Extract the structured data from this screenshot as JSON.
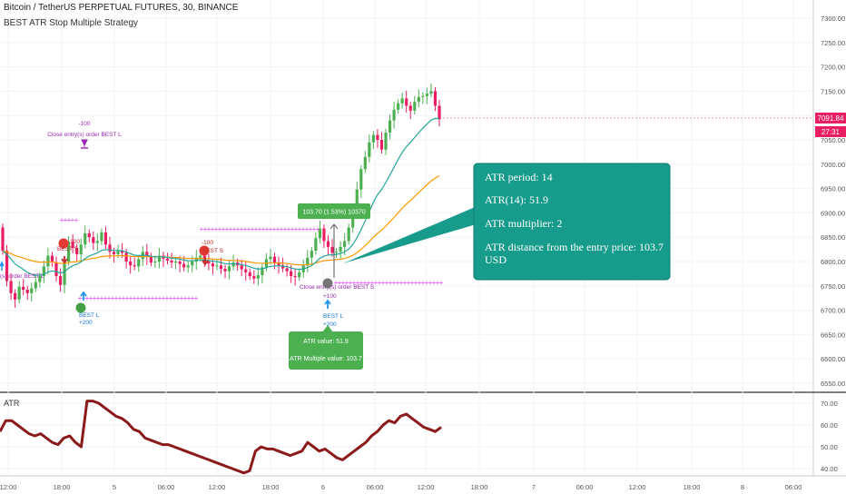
{
  "header": {
    "title": "Bitcoin / TetherUS PERPETUAL FUTURES, 30, BINANCE",
    "study": "BEST ATR Stop Multiple Strategy"
  },
  "price_axis": {
    "ticks": [
      "7300.00",
      "7250.00",
      "7200.00",
      "7150.00",
      "7100.00",
      "7050.00",
      "7000.00",
      "6950.00",
      "6900.00",
      "6850.00",
      "6800.00",
      "6750.00",
      "6700.00",
      "6650.00",
      "6600.00",
      "6550.00"
    ],
    "last_price": "7091.84",
    "countdown": "27:31"
  },
  "atr_pane": {
    "label": "ATR",
    "ticks": [
      "70.00",
      "60.00",
      "50.00",
      "40.00"
    ]
  },
  "time_axis": [
    "12:00",
    "18:00",
    "5",
    "06:00",
    "12:00",
    "18:00",
    "6",
    "06:00",
    "12:00",
    "18:00",
    "7",
    "06:00",
    "12:00",
    "18:00",
    "8",
    "06:00"
  ],
  "annotations": {
    "close_order_1_qty": "-100",
    "close_order_1_text": "Close entry(s) order BEST L",
    "best_s_1_qty": "-100",
    "best_s_1_label": "BEST S",
    "left_clipped_text": "(s) order BEST L",
    "best_l_1_label": "BEST L",
    "best_l_1_qty": "+200",
    "best_s_2_qty": "-100",
    "best_s_2_label": "BEST S",
    "close_order_2_text": "Close entry(s) order BEST S",
    "close_order_2_qty": "+100",
    "best_l_2_label": "BEST L",
    "best_l_2_qty": "+200",
    "measure_label": "103.70 (1.53%) 10370"
  },
  "info_box": {
    "line1": "ATR period: 14",
    "line2": "ATR(14): 51.9",
    "line3": "ATR multiplier: 2",
    "line4a": "ATR distance from the entry price: 103.7",
    "line4b": "USD"
  },
  "small_box": {
    "line1": "ATR value: 51.9",
    "line2": "ATR Multiple value: 103.7"
  },
  "colors": {
    "up": "#26a69a",
    "down": "#ef5350",
    "bull_candle": "#4caf50",
    "bear_candle": "#e91e63",
    "ema_fast": "#26a69a",
    "ema_slow": "#ff9800",
    "marker": "#e040fb",
    "info_box": "#179c8b",
    "atr_line": "#8b1a1a"
  }
}
